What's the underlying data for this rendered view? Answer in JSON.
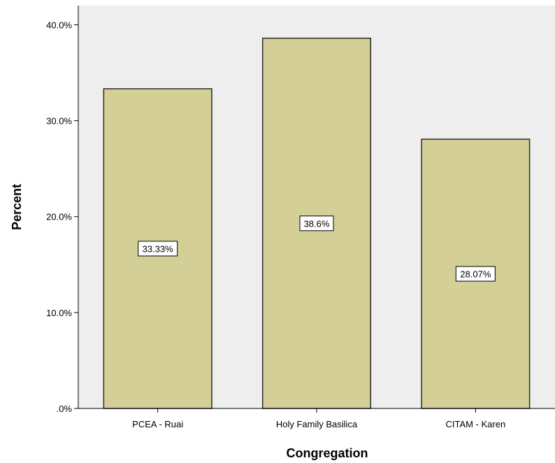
{
  "chart_data": {
    "type": "bar",
    "categories": [
      "PCEA - Ruai",
      "Holy Family Basilica",
      "CITAM - Karen"
    ],
    "values": [
      33.33,
      38.6,
      28.07
    ],
    "data_labels": [
      "33.33%",
      "38.6%",
      "28.07%"
    ],
    "xlabel": "Congregation",
    "ylabel": "Percent",
    "ylim": [
      0,
      42
    ],
    "yticks": [
      0,
      10,
      20,
      30,
      40
    ],
    "ytick_labels": [
      ".0%",
      "10.0%",
      "20.0%",
      "30.0%",
      "40.0%"
    ],
    "grid": false,
    "legend": "none",
    "colors": {
      "bar_fill": "#d4ce97",
      "bar_stroke": "#2b2b2b",
      "plot_background": "#eeeeee",
      "axis": "#000000",
      "label_box": "#ffffff"
    }
  }
}
